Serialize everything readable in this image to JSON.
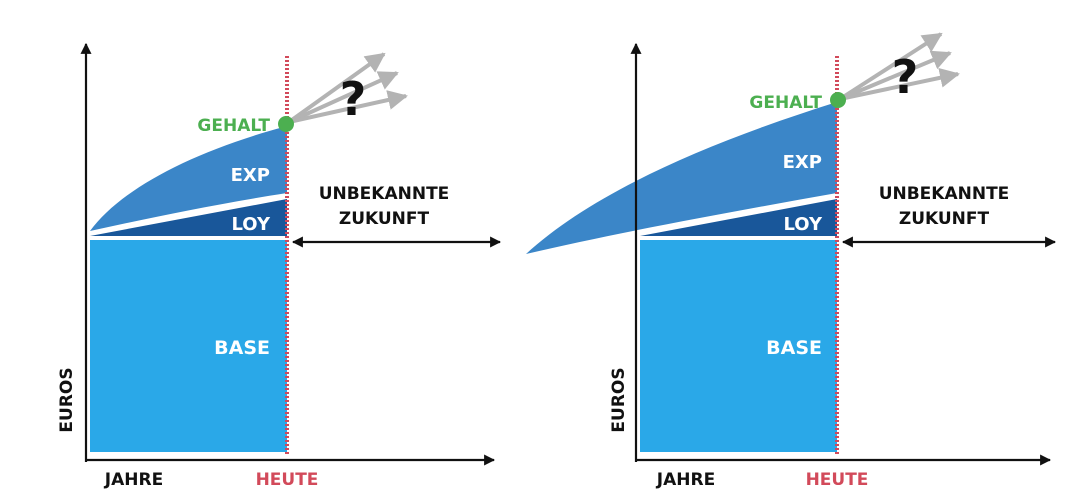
{
  "colors": {
    "base": "#2aa8e8",
    "loyalty": "#19579a",
    "experience": "#3b86c8",
    "salary": "#4caf50",
    "today": "#d24a5a",
    "arrow_gray": "#b3b3b3",
    "axis": "#111111"
  },
  "panels": [
    {
      "labels": {
        "exp": "EXP",
        "loy": "LOY",
        "base": "BASE",
        "salary": "GEHALT",
        "future": [
          "UNBEKANNTE",
          "ZUKUNFT"
        ],
        "y_axis": "EUROS",
        "x_axis": "JAHRE",
        "today": "HEUTE",
        "question": "?"
      }
    },
    {
      "labels": {
        "exp": "EXP",
        "loy": "LOY",
        "base": "BASE",
        "salary": "GEHALT",
        "future": [
          "UNBEKANNTE",
          "ZUKUNFT"
        ],
        "y_axis": "EUROS",
        "x_axis": "JAHRE",
        "today": "HEUTE",
        "question": "?"
      }
    }
  ]
}
